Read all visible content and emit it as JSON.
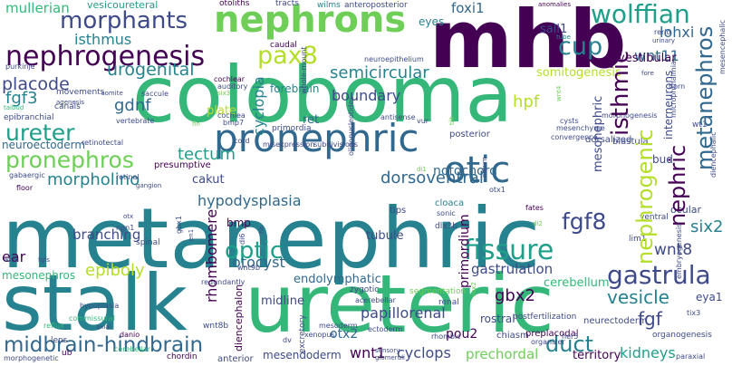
{
  "words": {
    "metanephric": "metanephric",
    "coloboma": "coloboma",
    "mhb": "mhb",
    "ureteric": "ureteric",
    "stalk": "stalk",
    "nephrons": "nephrons",
    "pronephric": "pronephric",
    "otic": "otic",
    "nephrogenesis": "nephrogenesis",
    "morphants": "morphants",
    "wolffian": "wolffian",
    "fissure": "fissure",
    "gastrula": "gastrula",
    "midbrain_hindbrain": "midbrain-hindbrain",
    "optic": "optic",
    "pax8": "pax8",
    "cup": "cup",
    "pronephros": "pronephros",
    "ureter": "ureter",
    "fgf8": "fgf8",
    "nephric": "nephric",
    "isthmic": "isthmic",
    "nephrogenic": "nephrogenic",
    "metanephros": "metanephros",
    "gastrulation": "gastrulation",
    "urogenital": "urogenital",
    "placode": "placode",
    "semicircular": "semicircular",
    "morpholino": "morpholino",
    "tectum": "tectum",
    "dorsoventral": "dorsoventral",
    "epiboly": "epiboly",
    "otocyst": "otocyst",
    "gbx2": "gbx2",
    "cyclops": "cyclops",
    "wnt1": "wnt1",
    "duct": "duct",
    "kidneys": "kidneys",
    "vesicle": "vesicle",
    "fgf": "fgf",
    "wnt8": "wnt8",
    "six2": "six2",
    "rhombomere": "rhombomere",
    "fgf3": "fgf3",
    "gdnf": "gdnf",
    "isthmus": "isthmus",
    "boundary": "boundary",
    "foxi1": "foxi1",
    "wnt11": "wnt11",
    "lhx1": "lhx1",
    "hpf": "hpf",
    "notochord": "notochord",
    "hypodysplasia": "hypodysplasia",
    "endolymphatic": "endolymphatic",
    "papillorenal": "papillorenal",
    "prechordal": "prechordal",
    "pou2": "pou2",
    "otx2": "otx2",
    "mesendoderm": "mesendoderm",
    "cerebellum": "cerebellum",
    "tubule": "tubule",
    "primordium": "primordium",
    "eya1": "eya1",
    "vestibular": "vestibular",
    "somitogenesis": "somitogenesis",
    "forebrain": "forebrain",
    "neuroectoderm": "neuroectoderm",
    "ear": "ear",
    "mesonephros": "mesonephros",
    "mesonephric": "mesonephric",
    "mullerian": "mullerian",
    "cyclopia": "cyclopia",
    "midline": "midline",
    "branching": "branching",
    "ret": "ret",
    "cakut": "cakut",
    "plate": "plate",
    "sall1": "sall1",
    "eyes": "eyes",
    "vesicoureteral": "vesicoureteral",
    "otoliths": "otoliths",
    "tracts": "tracts",
    "wilms": "wilms",
    "anteroposterior": "anteroposterior",
    "tube": "tube",
    "reflux": "reflux",
    "xenopus": "xenopus",
    "chordin": "chordin",
    "chiasm": "chiasm",
    "rostral": "rostral",
    "anterior": "anterior",
    "territory": "territory",
    "interneurons": "interneurons",
    "dorsalized": "dorsalized",
    "bud": "bud",
    "posterior": "posterior",
    "fates": "fates",
    "sonic": "sonic",
    "cloaca": "cloaca",
    "bmp": "bmp",
    "lens": "lens",
    "ub": "ub",
    "danio": "danio",
    "hypoplasia": "hypoplasia",
    "cerebellar": "cerebellar",
    "epibranchial": "epibranchial",
    "movements": "movements",
    "somite": "somite",
    "purkinje": "purkinje",
    "agenesis": "agenesis",
    "canals": "canals",
    "taibud": "taibud",
    "cochlear": "cochlear",
    "auditory": "auditory",
    "cochlea": "cochlea",
    "vertebrate": "vertebrate",
    "saccule": "saccule",
    "primordia": "primordia",
    "presumptive": "presumptive",
    "retinal": "retinal",
    "gangion": "gangion",
    "floor": "floor",
    "gabaergic": "gabaergic",
    "ventral": "ventral",
    "ocular": "ocular",
    "lim1": "lim1",
    "embryogenesis": "embryogenesis",
    "neurectoderm": "neurectoderm",
    "organogenesis": "organogenesis",
    "paraxial": "paraxial",
    "preplacodal": "preplacodal",
    "organizer": "organizer",
    "her5": "her5",
    "postfertilization": "postfertilization",
    "mesoderm": "mesoderm",
    "rhombic": "rhombic",
    "renal": "renal",
    "segmentation": "segmentation",
    "zygotic": "zygotic",
    "acerebellar": "acerebellar",
    "excretory": "excretory",
    "sensory": "sensory",
    "glomeruli": "glomeruli",
    "ectoderm": "ectoderm",
    "dv": "dv",
    "wnt8b": "wnt8b",
    "wnt9b": "wnt9b",
    "redundantly": "redundantly",
    "dlx3b": "dlx3b",
    "tips": "tips",
    "ngn1": "ngn1",
    "spinal": "spinal",
    "diencephalon": "diencephalon",
    "neuroepithelium": "neuroepithelium",
    "caudal": "caudal",
    "oligonucleotides": "oligonucleotides",
    "antisense": "antisense",
    "cysts": "cysts",
    "mesenchyme": "mesenchyme",
    "convergence": "convergence",
    "blastula": "blastula",
    "mesencephalic": "mesencephalic",
    "horn": "horn",
    "rerio": "rerio",
    "urinary": "urinary",
    "fore": "fore",
    "anomalies": "anomalies",
    "microphthalmia": "microphthalmia",
    "diencephalic": "diencephalic",
    "morphogenesis": "morphogenesis",
    "wt1": "wt1",
    "tix3": "tix3",
    "whole_mount": "whole-mount",
    "commissural": "commissural",
    "axial": "axial",
    "morphogenetic": "morphogenetic",
    "wnts": "wnts",
    "fgfs": "fgfs",
    "missexpression": "misexpression",
    "subdivisions": "subdivisions",
    "retinotectal": "retinotectal",
    "cord": "cord",
    "bmp7": "bmp7",
    "six3": "six3",
    "fin": "fin",
    "otx": "otx",
    "gbx1": "gbx1",
    "en1": "en1",
    "di6": "di6",
    "hh": "hh",
    "otx1": "otx1",
    "vur": "vur",
    "di1": "di1",
    "vox2": "vox2",
    "tilt": "tilt",
    "wnt4": "wnt4",
    "di2": "di2",
    "dlx2": "dlx2",
    "notum": "notum",
    "lohxi": "lohxi"
  },
  "colors": {
    "dark_purple": "#440154",
    "indigo": "#3e4a89",
    "blue": "#31688e",
    "teal_blue": "#26828e",
    "teal": "#1f9e89",
    "green": "#35b779",
    "light_green": "#6ece58",
    "lime": "#b5de2b",
    "yellow": "#fde725"
  }
}
